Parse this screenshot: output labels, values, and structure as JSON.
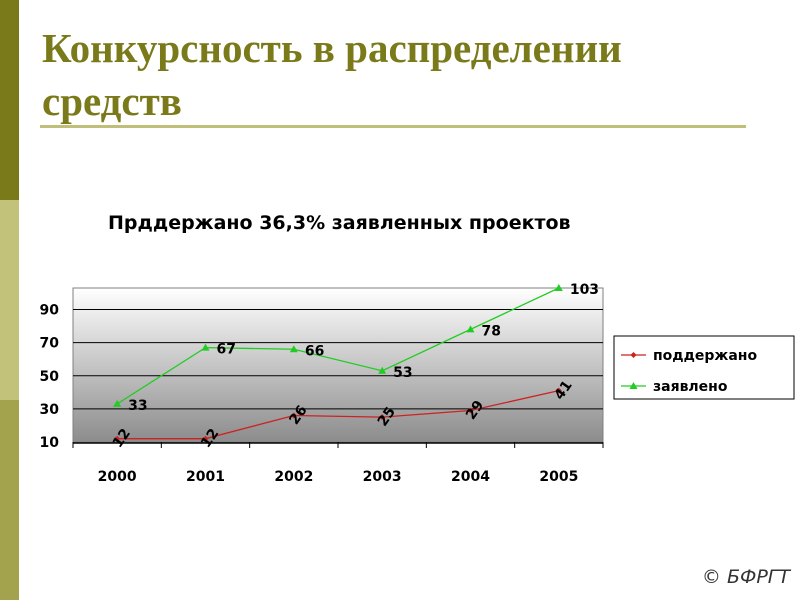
{
  "slide": {
    "title": "Конкурсность в распределении средств",
    "copyright": "© БФРГТ"
  },
  "chart_data": {
    "type": "line",
    "title": "Прддержано 36,3% заявленных проектов",
    "categories": [
      "2000",
      "2001",
      "2002",
      "2003",
      "2004",
      "2005"
    ],
    "series": [
      {
        "name": "поддержано",
        "values": [
          12,
          12,
          26,
          25,
          29,
          41
        ],
        "color": "#cc2222",
        "marker": "diamond"
      },
      {
        "name": "заявлено",
        "values": [
          33,
          67,
          66,
          53,
          78,
          103
        ],
        "color": "#22cc22",
        "marker": "triangle"
      }
    ],
    "yticks": [
      10,
      30,
      50,
      70,
      90
    ],
    "ylim": [
      10,
      103
    ],
    "xlabel": "",
    "ylabel": "",
    "legend": "right",
    "grid": true
  }
}
